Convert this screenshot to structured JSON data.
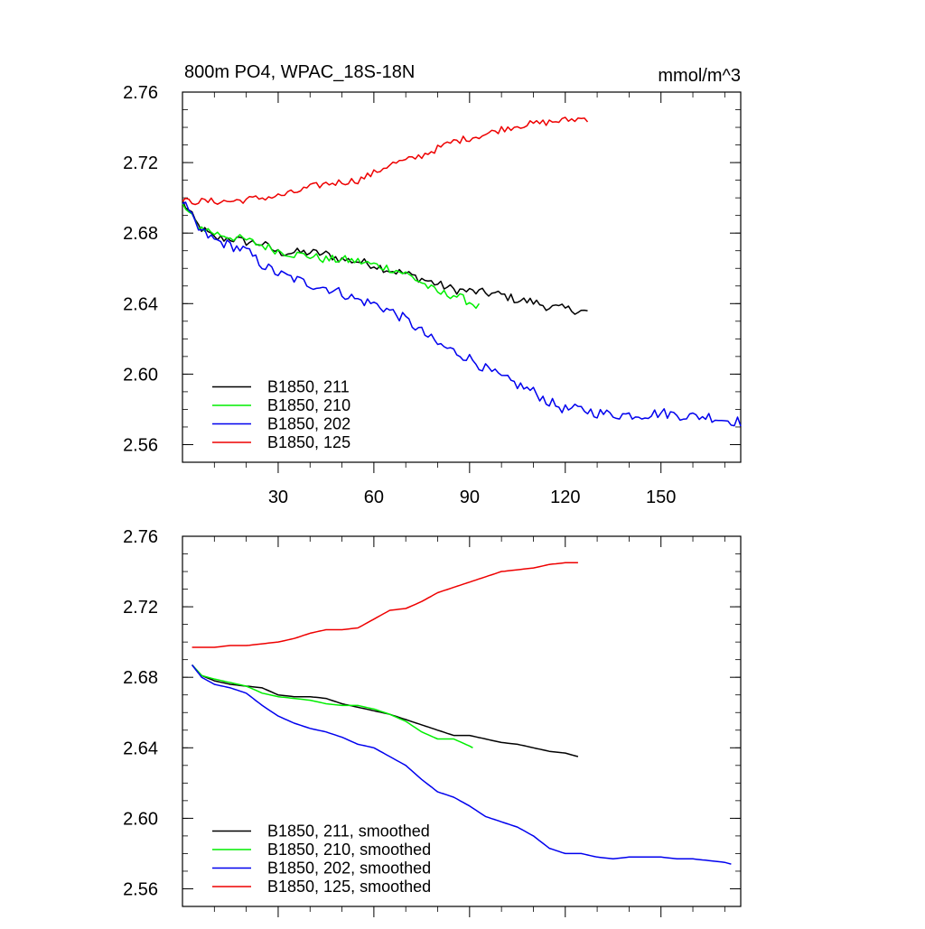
{
  "chart_data": [
    {
      "type": "line",
      "title": "800m PO4, WPAC_18S-18N",
      "units": "mmol/m^3",
      "ylim": [
        2.55,
        2.76
      ],
      "xlim": [
        0,
        175
      ],
      "yticks": [
        2.56,
        2.6,
        2.64,
        2.68,
        2.72,
        2.76
      ],
      "ytick_labels": [
        "2.56",
        "2.60",
        "2.64",
        "2.68",
        "2.72",
        "2.76"
      ],
      "xticks": [
        30,
        60,
        90,
        120,
        150
      ],
      "xtick_labels": [
        "30",
        "60",
        "90",
        "120",
        "150"
      ],
      "legend_position": "bottom-left",
      "grid": false,
      "series": [
        {
          "name": "B1850, 211",
          "color": "#000000",
          "noise": 0.0025,
          "points": [
            [
              0,
              2.698
            ],
            [
              5,
              2.684
            ],
            [
              10,
              2.677
            ],
            [
              15,
              2.677
            ],
            [
              20,
              2.675
            ],
            [
              25,
              2.674
            ],
            [
              30,
              2.669
            ],
            [
              35,
              2.669
            ],
            [
              40,
              2.669
            ],
            [
              45,
              2.668
            ],
            [
              50,
              2.665
            ],
            [
              55,
              2.664
            ],
            [
              60,
              2.662
            ],
            [
              65,
              2.659
            ],
            [
              70,
              2.657
            ],
            [
              75,
              2.654
            ],
            [
              80,
              2.651
            ],
            [
              85,
              2.648
            ],
            [
              90,
              2.647
            ],
            [
              95,
              2.646
            ],
            [
              100,
              2.645
            ],
            [
              105,
              2.642
            ],
            [
              110,
              2.641
            ],
            [
              115,
              2.638
            ],
            [
              120,
              2.637
            ],
            [
              125,
              2.636
            ],
            [
              127,
              2.635
            ]
          ]
        },
        {
          "name": "B1850, 210",
          "color": "#00ee00",
          "noise": 0.0025,
          "points": [
            [
              0,
              2.696
            ],
            [
              5,
              2.684
            ],
            [
              10,
              2.68
            ],
            [
              15,
              2.678
            ],
            [
              20,
              2.676
            ],
            [
              25,
              2.673
            ],
            [
              30,
              2.67
            ],
            [
              35,
              2.668
            ],
            [
              40,
              2.667
            ],
            [
              45,
              2.665
            ],
            [
              50,
              2.665
            ],
            [
              55,
              2.664
            ],
            [
              60,
              2.662
            ],
            [
              65,
              2.66
            ],
            [
              70,
              2.657
            ],
            [
              75,
              2.652
            ],
            [
              80,
              2.646
            ],
            [
              85,
              2.645
            ],
            [
              90,
              2.641
            ],
            [
              93,
              2.638
            ]
          ]
        },
        {
          "name": "B1850, 202",
          "color": "#0000ee",
          "noise": 0.003,
          "points": [
            [
              0,
              2.698
            ],
            [
              5,
              2.682
            ],
            [
              10,
              2.676
            ],
            [
              15,
              2.673
            ],
            [
              20,
              2.67
            ],
            [
              25,
              2.662
            ],
            [
              30,
              2.657
            ],
            [
              35,
              2.654
            ],
            [
              40,
              2.651
            ],
            [
              45,
              2.649
            ],
            [
              50,
              2.646
            ],
            [
              55,
              2.642
            ],
            [
              60,
              2.64
            ],
            [
              65,
              2.636
            ],
            [
              70,
              2.631
            ],
            [
              75,
              2.624
            ],
            [
              80,
              2.617
            ],
            [
              85,
              2.613
            ],
            [
              90,
              2.609
            ],
            [
              95,
              2.603
            ],
            [
              100,
              2.598
            ],
            [
              105,
              2.594
            ],
            [
              110,
              2.59
            ],
            [
              115,
              2.584
            ],
            [
              120,
              2.58
            ],
            [
              125,
              2.58
            ],
            [
              130,
              2.578
            ],
            [
              135,
              2.577
            ],
            [
              140,
              2.577
            ],
            [
              145,
              2.577
            ],
            [
              150,
              2.578
            ],
            [
              155,
              2.577
            ],
            [
              160,
              2.576
            ],
            [
              165,
              2.576
            ],
            [
              170,
              2.574
            ],
            [
              175,
              2.573
            ]
          ]
        },
        {
          "name": "B1850, 125",
          "color": "#ee0000",
          "noise": 0.002,
          "points": [
            [
              0,
              2.698
            ],
            [
              5,
              2.698
            ],
            [
              10,
              2.698
            ],
            [
              15,
              2.698
            ],
            [
              20,
              2.699
            ],
            [
              25,
              2.7
            ],
            [
              30,
              2.701
            ],
            [
              35,
              2.703
            ],
            [
              40,
              2.706
            ],
            [
              45,
              2.708
            ],
            [
              50,
              2.709
            ],
            [
              55,
              2.71
            ],
            [
              60,
              2.714
            ],
            [
              65,
              2.719
            ],
            [
              70,
              2.721
            ],
            [
              75,
              2.724
            ],
            [
              80,
              2.728
            ],
            [
              85,
              2.732
            ],
            [
              90,
              2.734
            ],
            [
              95,
              2.736
            ],
            [
              100,
              2.739
            ],
            [
              105,
              2.741
            ],
            [
              110,
              2.742
            ],
            [
              115,
              2.743
            ],
            [
              120,
              2.744
            ],
            [
              125,
              2.745
            ],
            [
              127,
              2.745
            ]
          ]
        }
      ]
    },
    {
      "type": "line",
      "title": "",
      "ylim": [
        2.55,
        2.76
      ],
      "xlim": [
        0,
        175
      ],
      "yticks": [
        2.56,
        2.6,
        2.64,
        2.68,
        2.72,
        2.76
      ],
      "ytick_labels": [
        "2.56",
        "2.60",
        "2.64",
        "2.68",
        "2.72",
        "2.76"
      ],
      "xticks": [
        30,
        60,
        90,
        120,
        150
      ],
      "legend_position": "bottom-left",
      "grid": false,
      "series": [
        {
          "name": "B1850, 211, smoothed",
          "color": "#000000",
          "noise": 0,
          "points": [
            [
              3,
              2.687
            ],
            [
              6,
              2.681
            ],
            [
              10,
              2.678
            ],
            [
              15,
              2.676
            ],
            [
              20,
              2.675
            ],
            [
              25,
              2.674
            ],
            [
              30,
              2.67
            ],
            [
              35,
              2.669
            ],
            [
              40,
              2.669
            ],
            [
              45,
              2.668
            ],
            [
              50,
              2.665
            ],
            [
              55,
              2.663
            ],
            [
              60,
              2.661
            ],
            [
              65,
              2.659
            ],
            [
              70,
              2.656
            ],
            [
              75,
              2.653
            ],
            [
              80,
              2.65
            ],
            [
              85,
              2.647
            ],
            [
              90,
              2.647
            ],
            [
              95,
              2.645
            ],
            [
              100,
              2.643
            ],
            [
              105,
              2.642
            ],
            [
              110,
              2.64
            ],
            [
              115,
              2.638
            ],
            [
              120,
              2.637
            ],
            [
              124,
              2.635
            ]
          ]
        },
        {
          "name": "B1850, 210, smoothed",
          "color": "#00ee00",
          "noise": 0,
          "points": [
            [
              3,
              2.687
            ],
            [
              6,
              2.681
            ],
            [
              10,
              2.679
            ],
            [
              15,
              2.677
            ],
            [
              20,
              2.675
            ],
            [
              25,
              2.671
            ],
            [
              30,
              2.669
            ],
            [
              35,
              2.668
            ],
            [
              40,
              2.667
            ],
            [
              45,
              2.665
            ],
            [
              50,
              2.664
            ],
            [
              55,
              2.664
            ],
            [
              60,
              2.662
            ],
            [
              65,
              2.659
            ],
            [
              70,
              2.655
            ],
            [
              75,
              2.649
            ],
            [
              80,
              2.645
            ],
            [
              85,
              2.645
            ],
            [
              90,
              2.641
            ],
            [
              91,
              2.64
            ]
          ]
        },
        {
          "name": "B1850, 202, smoothed",
          "color": "#0000ee",
          "noise": 0,
          "points": [
            [
              3,
              2.687
            ],
            [
              6,
              2.68
            ],
            [
              10,
              2.676
            ],
            [
              15,
              2.674
            ],
            [
              20,
              2.671
            ],
            [
              25,
              2.664
            ],
            [
              30,
              2.658
            ],
            [
              35,
              2.654
            ],
            [
              40,
              2.651
            ],
            [
              45,
              2.649
            ],
            [
              50,
              2.646
            ],
            [
              55,
              2.642
            ],
            [
              60,
              2.64
            ],
            [
              65,
              2.635
            ],
            [
              70,
              2.63
            ],
            [
              75,
              2.622
            ],
            [
              80,
              2.615
            ],
            [
              85,
              2.612
            ],
            [
              90,
              2.607
            ],
            [
              95,
              2.601
            ],
            [
              100,
              2.598
            ],
            [
              105,
              2.595
            ],
            [
              110,
              2.59
            ],
            [
              115,
              2.583
            ],
            [
              120,
              2.58
            ],
            [
              125,
              2.58
            ],
            [
              130,
              2.578
            ],
            [
              135,
              2.577
            ],
            [
              140,
              2.578
            ],
            [
              145,
              2.578
            ],
            [
              150,
              2.578
            ],
            [
              155,
              2.577
            ],
            [
              160,
              2.577
            ],
            [
              165,
              2.576
            ],
            [
              170,
              2.575
            ],
            [
              172,
              2.574
            ]
          ]
        },
        {
          "name": "B1850, 125, smoothed",
          "color": "#ee0000",
          "noise": 0,
          "points": [
            [
              3,
              2.697
            ],
            [
              10,
              2.697
            ],
            [
              15,
              2.698
            ],
            [
              20,
              2.698
            ],
            [
              25,
              2.699
            ],
            [
              30,
              2.7
            ],
            [
              35,
              2.702
            ],
            [
              40,
              2.705
            ],
            [
              45,
              2.707
            ],
            [
              50,
              2.707
            ],
            [
              55,
              2.708
            ],
            [
              60,
              2.713
            ],
            [
              65,
              2.718
            ],
            [
              70,
              2.719
            ],
            [
              75,
              2.723
            ],
            [
              80,
              2.728
            ],
            [
              85,
              2.731
            ],
            [
              90,
              2.734
            ],
            [
              95,
              2.737
            ],
            [
              100,
              2.74
            ],
            [
              105,
              2.741
            ],
            [
              110,
              2.742
            ],
            [
              115,
              2.744
            ],
            [
              120,
              2.745
            ],
            [
              124,
              2.745
            ]
          ]
        }
      ]
    }
  ]
}
